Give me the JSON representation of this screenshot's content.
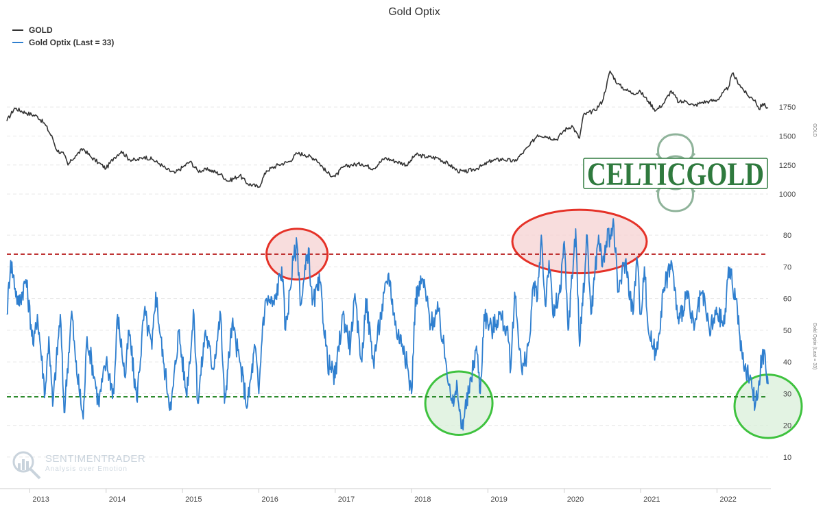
{
  "title": "Gold Optix",
  "legend": [
    {
      "label": "GOLD",
      "color": "#333333"
    },
    {
      "label": "Gold Optix (Last = 33)",
      "color": "#2f7fcf"
    }
  ],
  "watermark": {
    "name": "SENTIMENTRADER",
    "tagline": "Analysis over Emotion"
  },
  "logo": {
    "text": "CELTICGOLD",
    "color": "#2f7a3e"
  },
  "chart_data": {
    "type": "line",
    "title": "Gold Optix",
    "x_axis": {
      "ticks": [
        "2013",
        "2014",
        "2015",
        "2016",
        "2017",
        "2018",
        "2019",
        "2020",
        "2021",
        "2022"
      ],
      "range": [
        2012.7,
        2022.67
      ]
    },
    "panels": [
      {
        "name": "gold",
        "ylabel": "GOLD",
        "yticks": [
          1000,
          1250,
          1500,
          1750
        ],
        "ylim": [
          900,
          2200
        ],
        "series": [
          {
            "name": "GOLD",
            "color": "#333333",
            "points": [
              [
                2012.7,
                1630
              ],
              [
                2012.8,
                1740
              ],
              [
                2012.95,
                1700
              ],
              [
                2013.1,
                1670
              ],
              [
                2013.2,
                1600
              ],
              [
                2013.3,
                1480
              ],
              [
                2013.35,
                1380
              ],
              [
                2013.45,
                1340
              ],
              [
                2013.5,
                1250
              ],
              [
                2013.55,
                1290
              ],
              [
                2013.6,
                1330
              ],
              [
                2013.7,
                1390
              ],
              [
                2013.8,
                1320
              ],
              [
                2013.9,
                1270
              ],
              [
                2014.0,
                1220
              ],
              [
                2014.1,
                1310
              ],
              [
                2014.2,
                1370
              ],
              [
                2014.3,
                1300
              ],
              [
                2014.4,
                1290
              ],
              [
                2014.5,
                1320
              ],
              [
                2014.6,
                1300
              ],
              [
                2014.7,
                1260
              ],
              [
                2014.8,
                1210
              ],
              [
                2014.9,
                1180
              ],
              [
                2015.0,
                1230
              ],
              [
                2015.1,
                1280
              ],
              [
                2015.2,
                1200
              ],
              [
                2015.35,
                1210
              ],
              [
                2015.5,
                1170
              ],
              [
                2015.6,
                1110
              ],
              [
                2015.75,
                1160
              ],
              [
                2015.85,
                1090
              ],
              [
                2016.0,
                1060
              ],
              [
                2016.1,
                1200
              ],
              [
                2016.25,
                1250
              ],
              [
                2016.4,
                1280
              ],
              [
                2016.5,
                1350
              ],
              [
                2016.6,
                1340
              ],
              [
                2016.75,
                1300
              ],
              [
                2016.9,
                1180
              ],
              [
                2017.0,
                1150
              ],
              [
                2017.1,
                1230
              ],
              [
                2017.2,
                1250
              ],
              [
                2017.35,
                1260
              ],
              [
                2017.5,
                1220
              ],
              [
                2017.65,
                1310
              ],
              [
                2017.8,
                1280
              ],
              [
                2017.95,
                1250
              ],
              [
                2018.05,
                1340
              ],
              [
                2018.2,
                1320
              ],
              [
                2018.35,
                1310
              ],
              [
                2018.5,
                1250
              ],
              [
                2018.6,
                1200
              ],
              [
                2018.7,
                1190
              ],
              [
                2018.85,
                1220
              ],
              [
                2018.95,
                1250
              ],
              [
                2019.05,
                1290
              ],
              [
                2019.2,
                1300
              ],
              [
                2019.35,
                1280
              ],
              [
                2019.45,
                1350
              ],
              [
                2019.55,
                1420
              ],
              [
                2019.65,
                1510
              ],
              [
                2019.75,
                1500
              ],
              [
                2019.9,
                1470
              ],
              [
                2020.0,
                1550
              ],
              [
                2020.1,
                1590
              ],
              [
                2020.2,
                1480
              ],
              [
                2020.25,
                1680
              ],
              [
                2020.4,
                1720
              ],
              [
                2020.5,
                1800
              ],
              [
                2020.6,
                2060
              ],
              [
                2020.7,
                1950
              ],
              [
                2020.8,
                1900
              ],
              [
                2020.9,
                1870
              ],
              [
                2021.0,
                1880
              ],
              [
                2021.1,
                1800
              ],
              [
                2021.2,
                1720
              ],
              [
                2021.3,
                1780
              ],
              [
                2021.4,
                1890
              ],
              [
                2021.5,
                1790
              ],
              [
                2021.6,
                1800
              ],
              [
                2021.7,
                1760
              ],
              [
                2021.8,
                1790
              ],
              [
                2021.9,
                1800
              ],
              [
                2022.0,
                1810
              ],
              [
                2022.15,
                1920
              ],
              [
                2022.2,
                2040
              ],
              [
                2022.3,
                1940
              ],
              [
                2022.4,
                1850
              ],
              [
                2022.5,
                1810
              ],
              [
                2022.55,
                1730
              ],
              [
                2022.6,
                1780
              ],
              [
                2022.67,
                1740
              ]
            ]
          }
        ]
      },
      {
        "name": "optix",
        "ylabel": "Gold Optix (Last = 33)",
        "yticks": [
          10,
          20,
          30,
          40,
          50,
          60,
          70,
          80
        ],
        "ylim": [
          5,
          85
        ],
        "series": [
          {
            "name": "Gold Optix (Last = 33)",
            "color": "#2f7fcf",
            "points": [
              [
                2012.7,
                55
              ],
              [
                2012.75,
                72
              ],
              [
                2012.85,
                58
              ],
              [
                2012.95,
                66
              ],
              [
                2013.05,
                45
              ],
              [
                2013.1,
                55
              ],
              [
                2013.2,
                30
              ],
              [
                2013.25,
                48
              ],
              [
                2013.3,
                26
              ],
              [
                2013.4,
                55
              ],
              [
                2013.45,
                24
              ],
              [
                2013.55,
                56
              ],
              [
                2013.6,
                40
              ],
              [
                2013.7,
                22
              ],
              [
                2013.75,
                48
              ],
              [
                2013.85,
                35
              ],
              [
                2013.9,
                27
              ],
              [
                2014.0,
                40
              ],
              [
                2014.1,
                30
              ],
              [
                2014.15,
                55
              ],
              [
                2014.25,
                35
              ],
              [
                2014.3,
                50
              ],
              [
                2014.4,
                28
              ],
              [
                2014.5,
                56
              ],
              [
                2014.6,
                44
              ],
              [
                2014.65,
                62
              ],
              [
                2014.75,
                40
              ],
              [
                2014.85,
                25
              ],
              [
                2014.95,
                50
              ],
              [
                2015.05,
                30
              ],
              [
                2015.15,
                55
              ],
              [
                2015.2,
                27
              ],
              [
                2015.3,
                50
              ],
              [
                2015.4,
                38
              ],
              [
                2015.5,
                55
              ],
              [
                2015.55,
                27
              ],
              [
                2015.65,
                52
              ],
              [
                2015.75,
                40
              ],
              [
                2015.85,
                26
              ],
              [
                2015.95,
                45
              ],
              [
                2016.0,
                30
              ],
              [
                2016.05,
                52
              ],
              [
                2016.1,
                60
              ],
              [
                2016.2,
                58
              ],
              [
                2016.3,
                70
              ],
              [
                2016.35,
                50
              ],
              [
                2016.45,
                72
              ],
              [
                2016.5,
                77
              ],
              [
                2016.55,
                58
              ],
              [
                2016.65,
                76
              ],
              [
                2016.7,
                58
              ],
              [
                2016.8,
                65
              ],
              [
                2016.9,
                40
              ],
              [
                2017.0,
                35
              ],
              [
                2017.1,
                55
              ],
              [
                2017.2,
                45
              ],
              [
                2017.25,
                60
              ],
              [
                2017.35,
                40
              ],
              [
                2017.4,
                60
              ],
              [
                2017.5,
                40
              ],
              [
                2017.6,
                55
              ],
              [
                2017.7,
                68
              ],
              [
                2017.8,
                50
              ],
              [
                2017.9,
                45
              ],
              [
                2018.0,
                30
              ],
              [
                2018.05,
                60
              ],
              [
                2018.15,
                66
              ],
              [
                2018.25,
                52
              ],
              [
                2018.35,
                56
              ],
              [
                2018.45,
                40
              ],
              [
                2018.5,
                33
              ],
              [
                2018.55,
                26
              ],
              [
                2018.6,
                32
              ],
              [
                2018.65,
                19
              ],
              [
                2018.75,
                30
              ],
              [
                2018.85,
                45
              ],
              [
                2018.9,
                30
              ],
              [
                2018.95,
                55
              ],
              [
                2019.05,
                50
              ],
              [
                2019.15,
                55
              ],
              [
                2019.25,
                50
              ],
              [
                2019.3,
                38
              ],
              [
                2019.35,
                62
              ],
              [
                2019.45,
                36
              ],
              [
                2019.55,
                48
              ],
              [
                2019.6,
                65
              ],
              [
                2019.65,
                60
              ],
              [
                2019.7,
                80
              ],
              [
                2019.75,
                58
              ],
              [
                2019.8,
                72
              ],
              [
                2019.85,
                55
              ],
              [
                2019.95,
                62
              ],
              [
                2020.0,
                78
              ],
              [
                2020.05,
                50
              ],
              [
                2020.15,
                82
              ],
              [
                2020.2,
                45
              ],
              [
                2020.3,
                80
              ],
              [
                2020.35,
                55
              ],
              [
                2020.45,
                80
              ],
              [
                2020.5,
                70
              ],
              [
                2020.55,
                78
              ],
              [
                2020.6,
                80
              ],
              [
                2020.65,
                83
              ],
              [
                2020.7,
                62
              ],
              [
                2020.8,
                72
              ],
              [
                2020.9,
                55
              ],
              [
                2020.95,
                73
              ],
              [
                2021.0,
                55
              ],
              [
                2021.05,
                70
              ],
              [
                2021.1,
                50
              ],
              [
                2021.2,
                42
              ],
              [
                2021.3,
                62
              ],
              [
                2021.4,
                72
              ],
              [
                2021.5,
                52
              ],
              [
                2021.6,
                62
              ],
              [
                2021.7,
                50
              ],
              [
                2021.8,
                62
              ],
              [
                2021.9,
                50
              ],
              [
                2022.0,
                55
              ],
              [
                2022.1,
                52
              ],
              [
                2022.15,
                70
              ],
              [
                2022.25,
                60
              ],
              [
                2022.3,
                48
              ],
              [
                2022.35,
                38
              ],
              [
                2022.45,
                35
              ],
              [
                2022.5,
                26
              ],
              [
                2022.55,
                34
              ],
              [
                2022.6,
                44
              ],
              [
                2022.67,
                33
              ]
            ]
          }
        ]
      }
    ],
    "reference_lines": [
      {
        "panel": "optix",
        "value": 74,
        "color": "#b81f1f",
        "style": "dashed"
      },
      {
        "panel": "optix",
        "value": 29,
        "color": "#2e8b2e",
        "style": "dashed"
      }
    ],
    "annotations": [
      {
        "shape": "ellipse",
        "panel": "optix",
        "cx": 2016.5,
        "cy": 74,
        "rx": 0.4,
        "ry": 8,
        "color": "#e53228",
        "fill": "#f6d2d2"
      },
      {
        "shape": "ellipse",
        "panel": "optix",
        "cx": 2020.2,
        "cy": 78,
        "rx": 0.88,
        "ry": 10,
        "color": "#e53228",
        "fill": "#f6d2d2"
      },
      {
        "shape": "ellipse",
        "panel": "optix",
        "cx": 2018.62,
        "cy": 27,
        "rx": 0.44,
        "ry": 10,
        "color": "#3ec23e",
        "fill": "#d9efd9"
      },
      {
        "shape": "ellipse",
        "panel": "optix",
        "cx": 2022.67,
        "cy": 26,
        "rx": 0.44,
        "ry": 10,
        "color": "#3ec23e",
        "fill": "#d9efd9"
      }
    ],
    "grid": true,
    "legend_position": "top-left"
  }
}
